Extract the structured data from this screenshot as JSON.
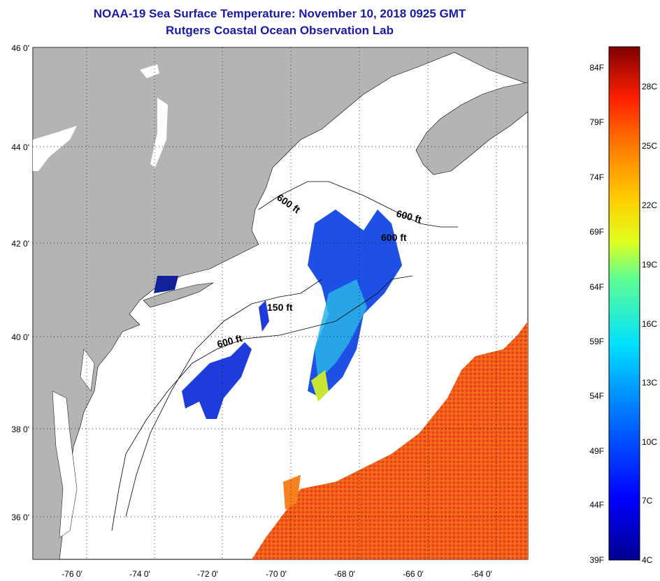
{
  "title": "NOAA-19 Sea Surface Temperature:  November 10, 2018 0925 GMT",
  "subtitle": "Rutgers Coastal Ocean Observation Lab",
  "lat_labels": [
    "46 0'",
    "44 0'",
    "42 0'",
    "40 0'",
    "38 0'",
    "36 0'"
  ],
  "lon_labels": [
    "-76 0'",
    "-74 0'",
    "-72 0'",
    "-70 0'",
    "-68 0'",
    "-66 0'",
    "-64 0'"
  ],
  "contour_labels": [
    "600 ft",
    "600 ft",
    "600 ft",
    "150 ft",
    "600 ft"
  ],
  "colorbar": {
    "f_labels": [
      "84F",
      "79F",
      "74F",
      "69F",
      "64F",
      "59F",
      "54F",
      "49F",
      "44F",
      "39F"
    ],
    "c_labels": [
      "28C",
      "25C",
      "22C",
      "19C",
      "16C",
      "13C",
      "10C",
      "7C",
      "4C"
    ]
  },
  "colors": {
    "title": "#1a1aa6",
    "land": "#b4b4b4",
    "cold": "#1e3cdc",
    "warm": "#f05a14"
  }
}
